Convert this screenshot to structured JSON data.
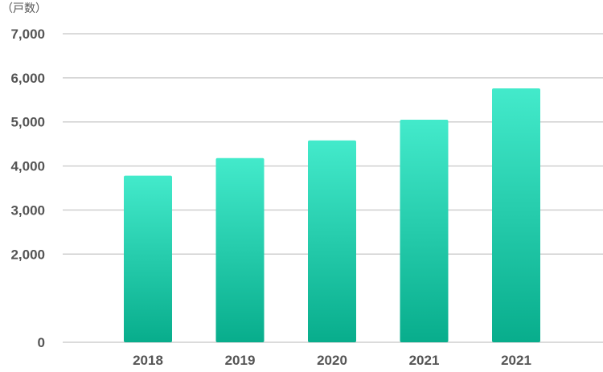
{
  "chart_data": {
    "type": "bar",
    "unit_label": "（戸数）",
    "categories": [
      "2018",
      "2019",
      "2020",
      "2021",
      "2021"
    ],
    "values": [
      3780,
      4180,
      4580,
      5050,
      5760
    ],
    "y_ticks": [
      "0",
      "2,000",
      "3,000",
      "4,000",
      "5,000",
      "6,000",
      "7,000"
    ],
    "y_tick_values": [
      0,
      2000,
      3000,
      4000,
      5000,
      6000,
      7000
    ],
    "ylim": [
      0,
      7000
    ],
    "grid": true,
    "colors": {
      "bar_top": "#43eacb",
      "bar_bottom": "#08ad8c",
      "grid": "#cfcfcf",
      "text": "#555555"
    }
  }
}
